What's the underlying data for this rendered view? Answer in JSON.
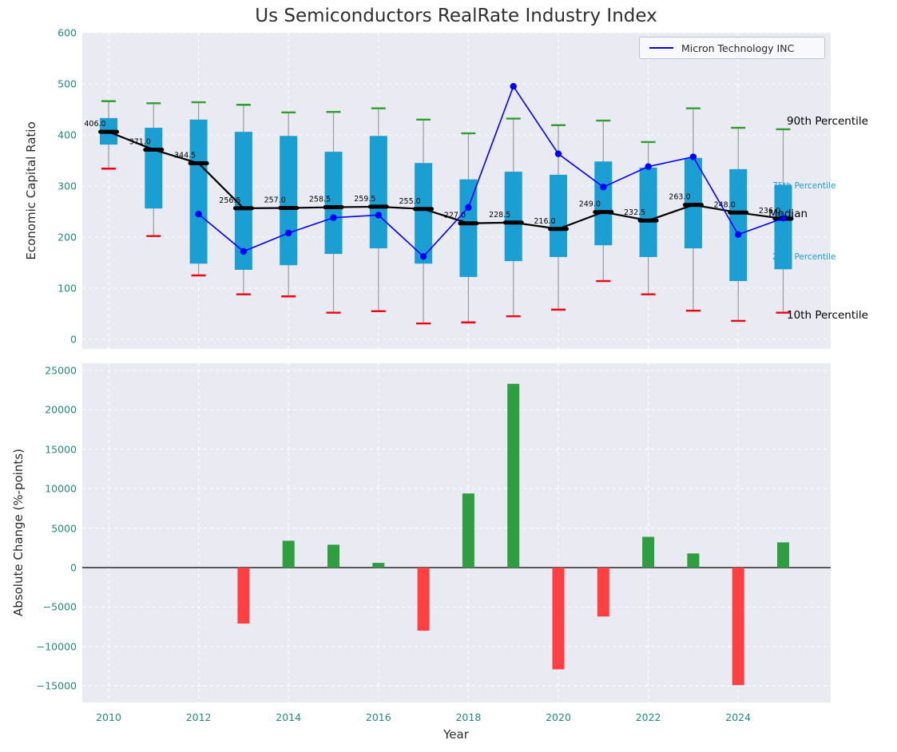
{
  "title": "Us Semiconductors RealRate Industry Index",
  "legend": {
    "label": "Micron Technology INC"
  },
  "colors": {
    "box": "#1b9ed2",
    "median": "#000000",
    "median_line": "#000000",
    "p90_cap": "#2ca02c",
    "p10_cap": "#f30010",
    "micron_line": "#0000ff",
    "bar_positive": "#2f9e41",
    "bar_negative": "#ff4043",
    "panel_background": "#eaeaf2",
    "grid": "#ffffff",
    "tick_label": "#23887a",
    "whisker": "#9a9a9a",
    "percentile_label_accent": "#1b9ed2"
  },
  "x_axis": {
    "label": "Year",
    "tick_labels": [
      "2010",
      "2012",
      "2014",
      "2016",
      "2018",
      "2020",
      "2022",
      "2024"
    ],
    "tick_values": [
      2010,
      2012,
      2014,
      2016,
      2018,
      2020,
      2022,
      2024
    ]
  },
  "right_labels": [
    {
      "text": "90th Percentile",
      "color": "#000000"
    },
    {
      "text": "75th Percentile",
      "color": "#1b9ed2"
    },
    {
      "text": "Median",
      "color": "#000000"
    },
    {
      "text": "25th Percentile",
      "color": "#1b9ed2"
    },
    {
      "text": "10th Percentile",
      "color": "#000000"
    }
  ],
  "chart_data": [
    {
      "type": "boxplot+line",
      "title": "Us Semiconductors RealRate Industry Index",
      "ylabel": "Economic Capital Ratio",
      "ylim": [
        0,
        600
      ],
      "grid": true,
      "legend_position": "upper right",
      "y_ticks": [
        600,
        500,
        400,
        300,
        200,
        100,
        0
      ],
      "y_tick_labels": [
        "600",
        "500",
        "400",
        "300",
        "200",
        "100",
        "0"
      ],
      "years": [
        2010,
        2011,
        2012,
        2013,
        2014,
        2015,
        2016,
        2017,
        2018,
        2019,
        2020,
        2021,
        2022,
        2023,
        2024,
        2025
      ],
      "percentile_90": [
        466,
        462,
        464,
        459,
        444,
        445,
        452,
        430,
        403,
        432,
        419,
        428,
        386,
        452,
        414,
        411
      ],
      "percentile_75": [
        433,
        414,
        430,
        406,
        398,
        367,
        398,
        345,
        313,
        328,
        322,
        348,
        336,
        355,
        333,
        302
      ],
      "median": [
        406.0,
        371.0,
        344.5,
        256.5,
        257.0,
        258.5,
        259.5,
        255.0,
        227.0,
        228.5,
        216.0,
        249.0,
        232.5,
        263.0,
        248.0,
        236.0
      ],
      "percentile_25": [
        381,
        256,
        148,
        136,
        145,
        167,
        178,
        148,
        122,
        153,
        161,
        184,
        161,
        178,
        114,
        137
      ],
      "percentile_10": [
        334,
        202,
        125,
        88,
        84,
        52,
        55,
        31,
        33,
        45,
        58,
        114,
        88,
        56,
        36,
        52
      ],
      "micron": {
        "name": "Micron Technology INC",
        "years": [
          2012,
          2013,
          2014,
          2015,
          2016,
          2017,
          2018,
          2019,
          2020,
          2021,
          2022,
          2023,
          2024,
          2025
        ],
        "values": [
          245,
          172,
          208,
          238,
          243,
          162,
          258,
          495,
          363,
          298,
          338,
          357,
          205,
          237
        ]
      }
    },
    {
      "type": "bar",
      "ylabel": "Absolute Change (%-points)",
      "xlabel": "Year",
      "ylim": [
        -17000,
        26000
      ],
      "grid": true,
      "y_ticks": [
        25000,
        20000,
        15000,
        10000,
        5000,
        0,
        -5000,
        -10000,
        -15000
      ],
      "y_tick_labels": [
        "25000",
        "20000",
        "15000",
        "10000",
        "5000",
        "0",
        "−5000",
        "−10000",
        "−15000"
      ],
      "years": [
        2010,
        2011,
        2012,
        2013,
        2014,
        2015,
        2016,
        2017,
        2018,
        2019,
        2020,
        2021,
        2022,
        2023,
        2024,
        2025
      ],
      "values": [
        null,
        null,
        null,
        -7100,
        3400,
        2900,
        600,
        -8000,
        9400,
        23300,
        -12900,
        -6200,
        3900,
        1800,
        -14900,
        3200
      ]
    }
  ]
}
